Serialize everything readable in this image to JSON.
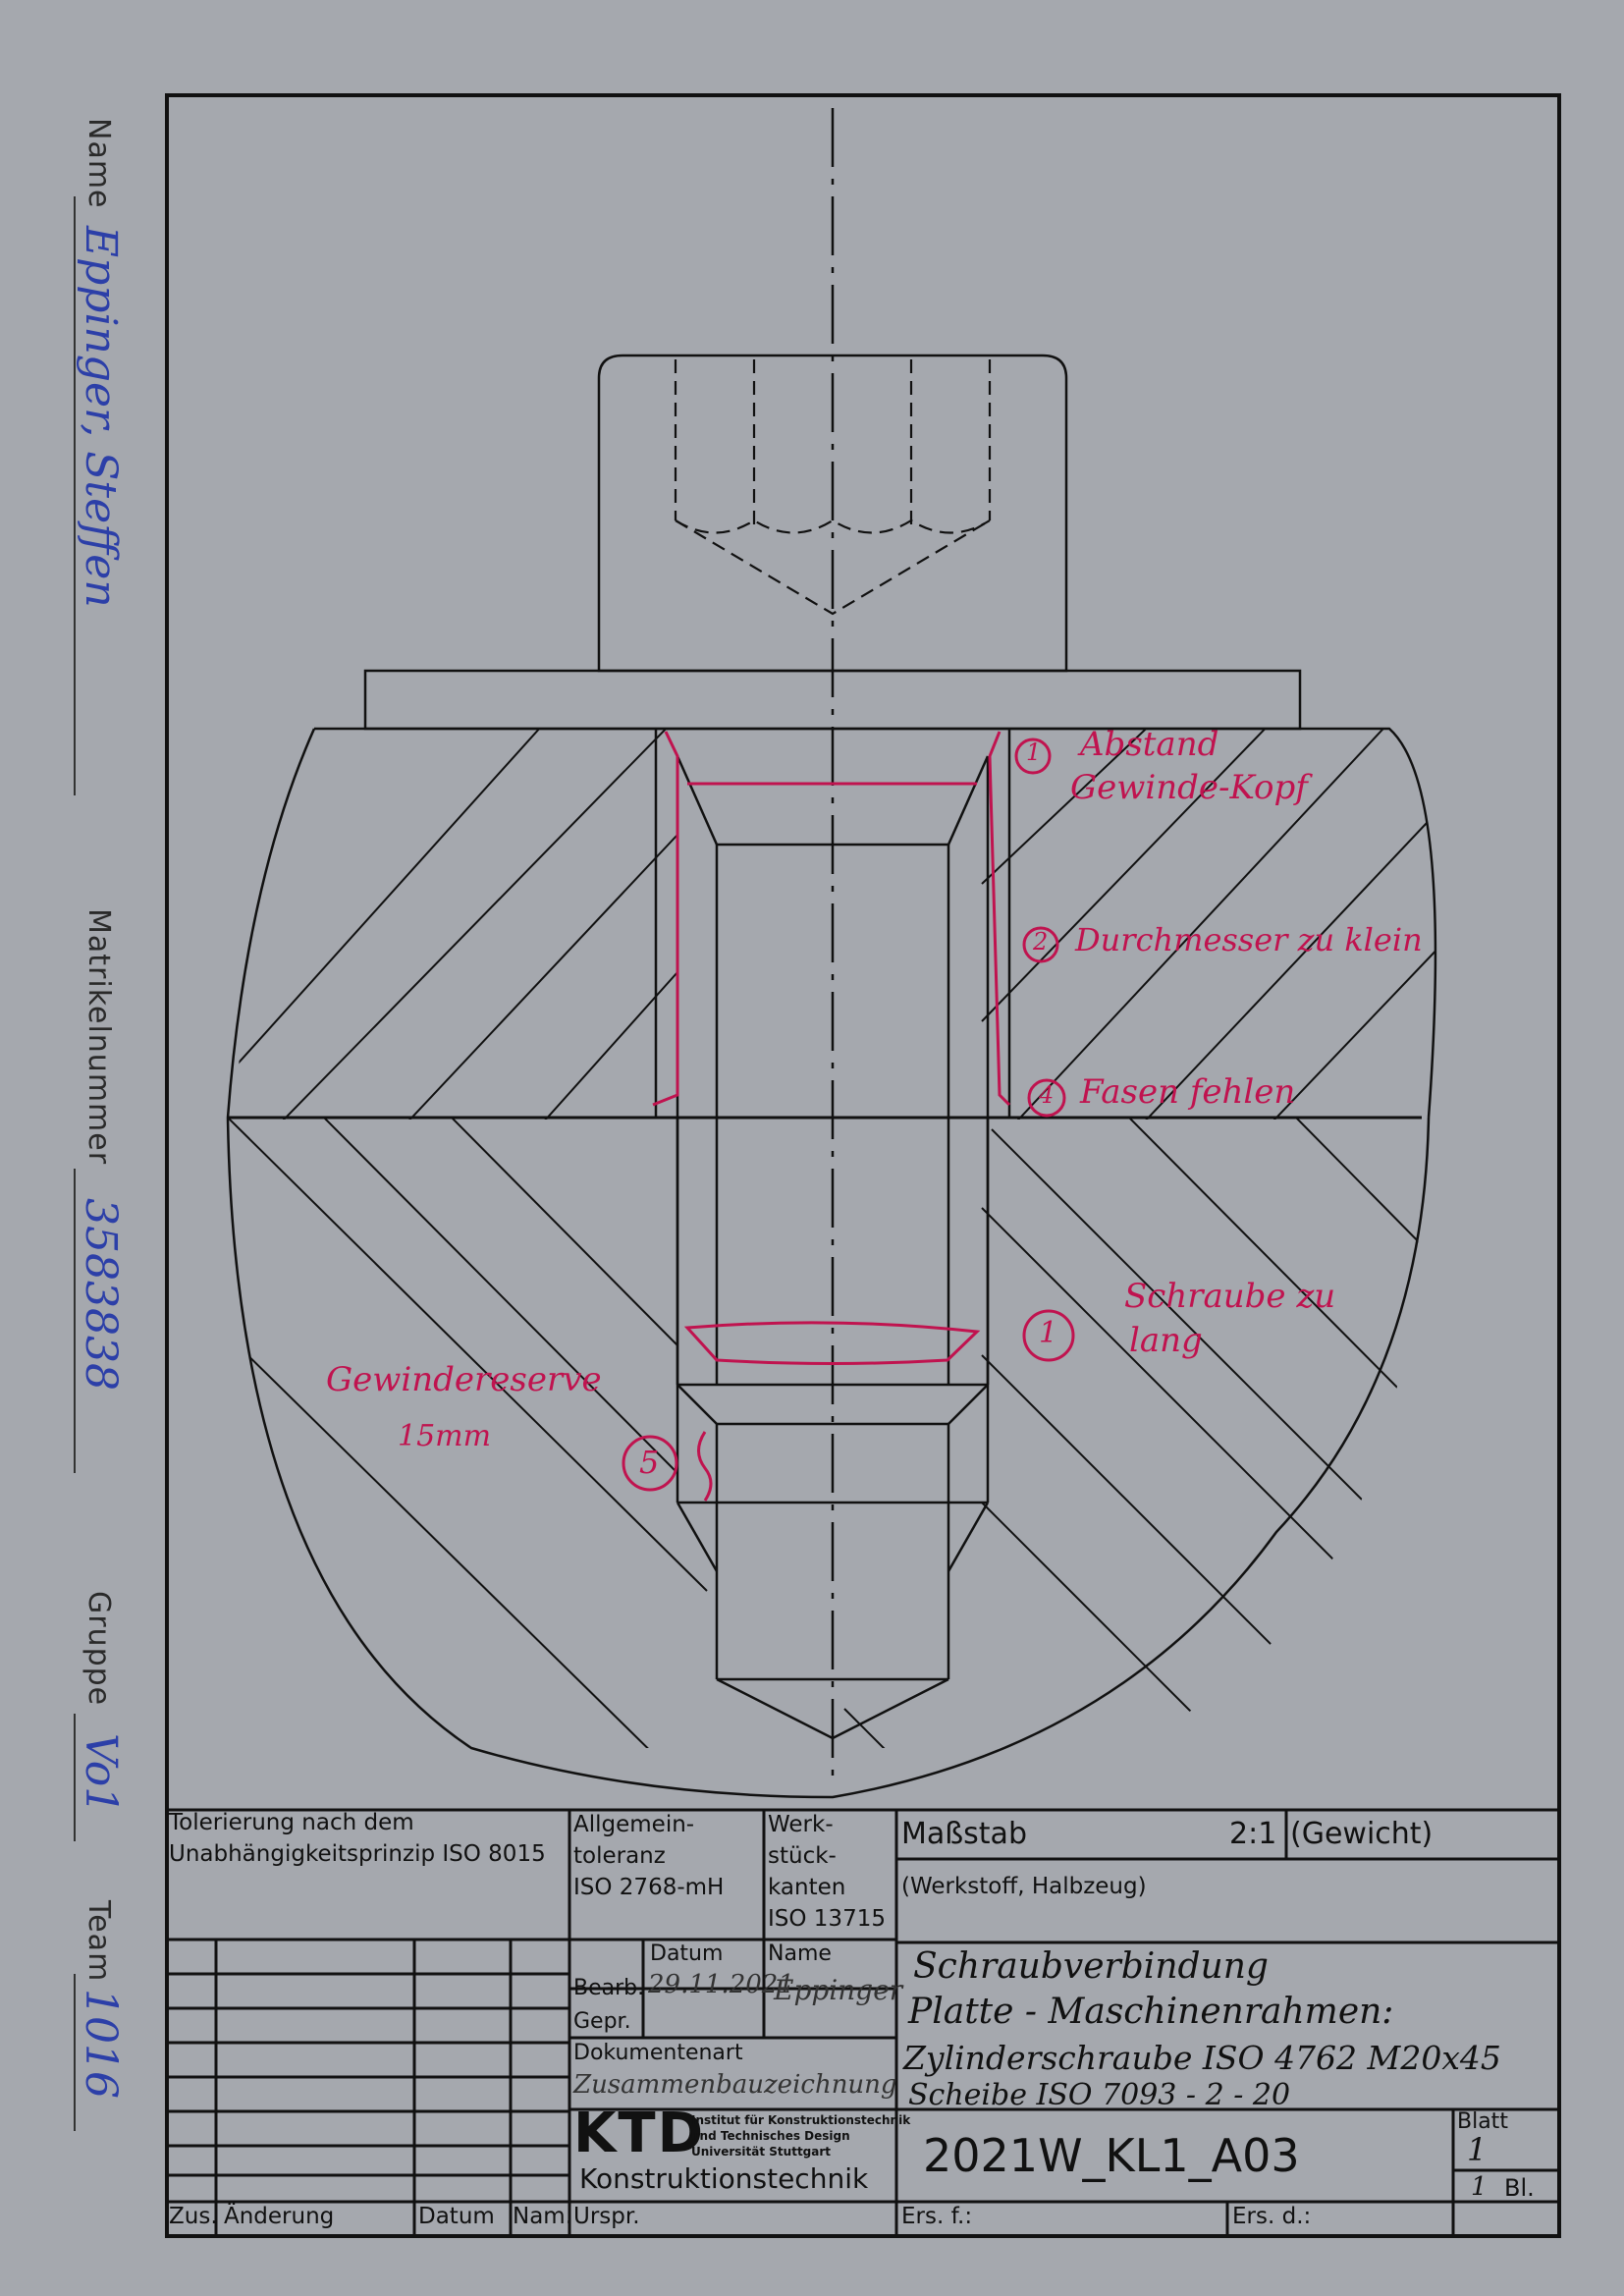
{
  "margin": {
    "name_label": "Name",
    "name_value": "Eppinger, Steffen",
    "matrikel_label": "Matrikelnummer",
    "matrikel_value": "3583838",
    "gruppe_label": "Gruppe",
    "gruppe_value": "Vo1",
    "team_label": "Team",
    "team_value": "1016"
  },
  "annotations": {
    "a1": "Abstand",
    "a1b": "Gewinde-Kopf",
    "a2": "Durchmesser zu klein",
    "a3": "Fasen fehlen",
    "a4": "Schraube zu",
    "a4b": "lang",
    "a5": "Gewindereserve",
    "a5b": "15mm",
    "circle1": "1",
    "circle2": "2",
    "circle4": "4",
    "circle1b": "1",
    "circle5": "5"
  },
  "title_block": {
    "tolerierung_1": "Tolerierung nach dem",
    "tolerierung_2": "Unabhängigkeitsprinzip ISO 8015",
    "allgemein_1": "Allgemein-",
    "allgemein_2": "toleranz",
    "allgemein_3": "ISO 2768-mH",
    "werk_1": "Werk-",
    "werk_2": "stück-",
    "werk_3": "kanten",
    "werk_4": "ISO 13715",
    "massstab_label": "Maßstab",
    "massstab_value": "2:1",
    "gewicht_label": "(Gewicht)",
    "werkstoff_label": "(Werkstoff, Halbzeug)",
    "datum_header": "Datum",
    "name_header": "Name",
    "bearb_label": "Bearb.",
    "bearb_datum": "29.11.2021",
    "bearb_name": "Eppinger",
    "gepr_label": "Gepr.",
    "dokumentenart_label": "Dokumentenart",
    "dokumentenart_value": "Zusammenbauzeichnung",
    "title_1": "Schraubverbindung",
    "title_2": "Platte - Maschinenrahmen:",
    "title_3": "Zylinderschraube ISO 4762 M20x45",
    "title_4": "Scheibe ISO 7093 - 2 - 20",
    "logo_text": "KTD",
    "institute_1": "Institut für Konstruktionstechnik",
    "institute_2": "und Technisches Design",
    "institute_3": "Universität Stuttgart",
    "konstruktionstechnik": "Konstruktionstechnik",
    "drawing_number": "2021W_KL1_A03",
    "blatt_label": "Blatt",
    "blatt_value": "1",
    "bl_value": "1",
    "bl_label": "Bl.",
    "zus_label": "Zus.",
    "aenderung_label": "Änderung",
    "datum_label_bottom": "Datum",
    "nam_label": "Nam.",
    "urspr_label": "Urspr.",
    "ers_f_label": "Ers. f.:",
    "ers_d_label": "Ers. d.:"
  },
  "colors": {
    "paper": "#a5a8ae",
    "ink": "#111111",
    "correction_red": "#c0134f",
    "pen_blue": "#2c3fa8"
  }
}
